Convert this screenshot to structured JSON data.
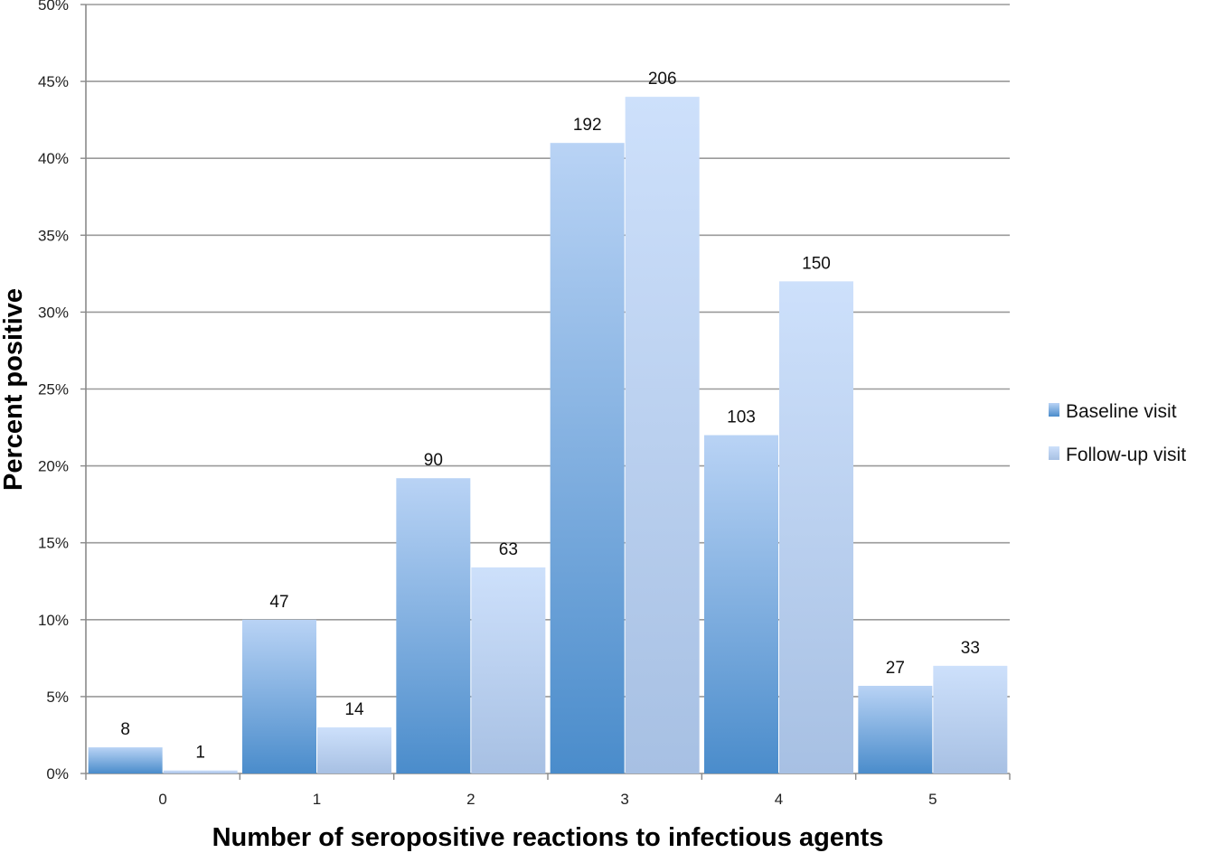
{
  "chart_data": {
    "type": "bar",
    "title": "",
    "xlabel": "Number of seropositive reactions to infectious agents",
    "ylabel": "Percent positive",
    "categories": [
      "0",
      "1",
      "2",
      "3",
      "4",
      "5"
    ],
    "ylim": [
      0,
      50
    ],
    "y_ticks": [
      0,
      5,
      10,
      15,
      20,
      25,
      30,
      35,
      40,
      45,
      50
    ],
    "y_tick_labels": [
      "0%",
      "5%",
      "10%",
      "15%",
      "20%",
      "25%",
      "30%",
      "35%",
      "40%",
      "45%",
      "50%"
    ],
    "grid": true,
    "legend_position": "right",
    "series": [
      {
        "name": "Baseline visit",
        "color": "#4f8fcb",
        "values": [
          1.7,
          10.0,
          19.2,
          41.0,
          22.0,
          5.7
        ],
        "data_labels": [
          "8",
          "47",
          "90",
          "192",
          "103",
          "27"
        ]
      },
      {
        "name": "Follow-up visit",
        "color": "#a9c4ea",
        "values": [
          0.2,
          3.0,
          13.4,
          44.0,
          32.0,
          7.0
        ],
        "data_labels": [
          "1",
          "14",
          "63",
          "206",
          "150",
          "33"
        ]
      }
    ]
  }
}
